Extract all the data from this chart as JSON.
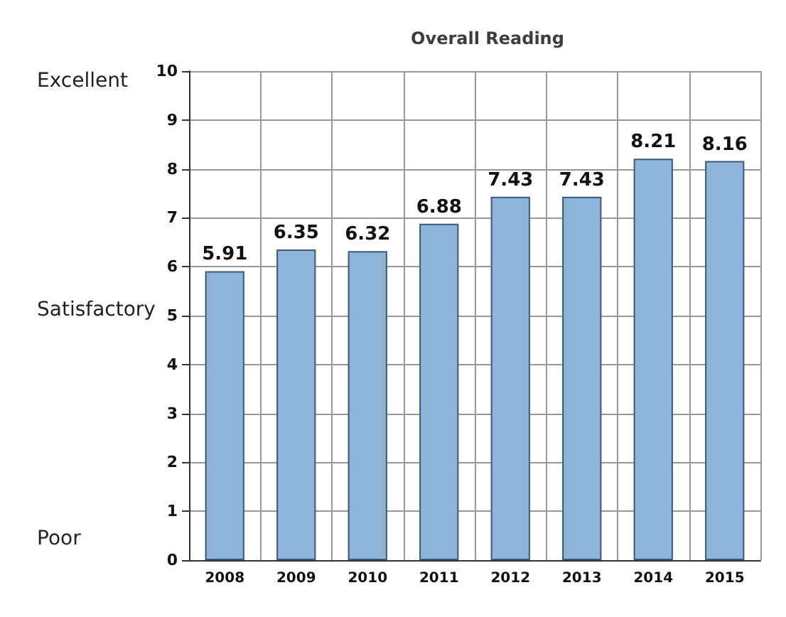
{
  "chart_data": {
    "type": "bar",
    "title": "Overall Reading",
    "categories": [
      "2008",
      "2009",
      "2010",
      "2011",
      "2012",
      "2013",
      "2014",
      "2015"
    ],
    "values": [
      5.91,
      6.35,
      6.32,
      6.88,
      7.43,
      7.43,
      8.21,
      8.16
    ],
    "color": "#8fb4d9",
    "ylim": [
      0,
      10
    ],
    "yticks": [
      0,
      1,
      2,
      3,
      4,
      5,
      6,
      7,
      8,
      9,
      10
    ],
    "grid": true,
    "data_labels": true,
    "annotations": [
      "Excellent",
      "Satisfactory",
      "Poor"
    ]
  }
}
